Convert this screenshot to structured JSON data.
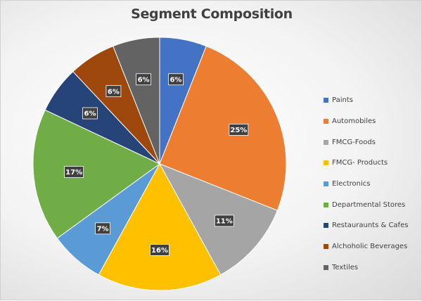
{
  "chart_data": {
    "type": "pie",
    "title": "Segment Composition",
    "categories": [
      "Paints",
      "Automobiles",
      "FMCG-Foods",
      "FMCG- Products",
      "Electronics",
      "Departmental Stores",
      "Restauraunts & Cafes",
      "Alchoholic Beverages",
      "Textiles"
    ],
    "values": [
      6,
      25,
      11,
      16,
      7,
      17,
      6,
      6,
      6
    ],
    "data_labels": [
      "6%",
      "25%",
      "11%",
      "16%",
      "7%",
      "17%",
      "6%",
      "6%",
      "6%"
    ],
    "colors": [
      "#4472C4",
      "#ED7D31",
      "#A5A5A5",
      "#FFC000",
      "#5B9BD5",
      "#70AD47",
      "#264478",
      "#9E480E",
      "#636363"
    ],
    "start_angle_deg": 0,
    "direction": "clockwise",
    "legend_position": "right"
  }
}
